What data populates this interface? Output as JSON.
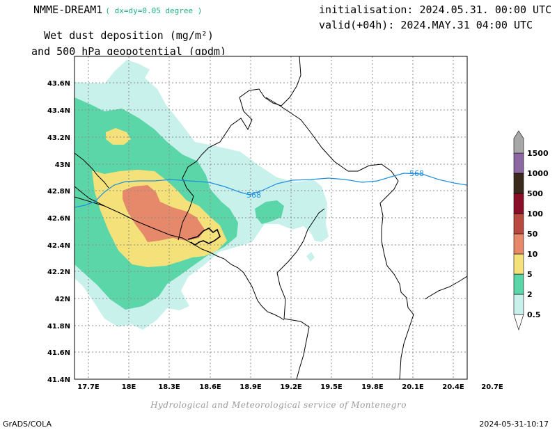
{
  "header": {
    "model": "NMME-DREAM1",
    "model_resolution": "( dx=dy=0.05 degree )",
    "title_line1": "Wet dust deposition (mg/m²)",
    "title_line2": "and 500 hPa geopotential (gpdm)",
    "initialisation": "initialisation: 2024.05.31. 00:00 UTC",
    "valid": "valid(+04h): 2024.MAY.31 04:00 UTC"
  },
  "map": {
    "lat_labels": [
      "43.6N",
      "43.4N",
      "43.2N",
      "43N",
      "42.8N",
      "42.6N",
      "42.4N",
      "42.2N",
      "42N",
      "41.8N",
      "41.6N",
      "41.4N"
    ],
    "lon_labels": [
      "17.7E",
      "18E",
      "18.3E",
      "18.6E",
      "18.9E",
      "19.2E",
      "19.5E",
      "19.8E",
      "20.1E",
      "20.4E",
      "20.7E"
    ],
    "contour_labels": [
      "568",
      "568"
    ],
    "contour_color": "#1e8fdc"
  },
  "legend": {
    "levels": [
      {
        "label": "0.5",
        "color": "#c8f1ec"
      },
      {
        "label": "2",
        "color": "#5ad6a8"
      },
      {
        "label": "5",
        "color": "#f5e17a"
      },
      {
        "label": "10",
        "color": "#e6896a"
      },
      {
        "label": "50",
        "color": "#b84a40"
      },
      {
        "label": "100",
        "color": "#8a0e28"
      },
      {
        "label": "500",
        "color": "#3a2a1c"
      },
      {
        "label": "1000",
        "color": "#8c67a2"
      },
      {
        "label": "1500",
        "color": "#a7a7a7"
      }
    ]
  },
  "footer": {
    "credit": "Hydrological and Meteorological service of Montenegro",
    "left": "GrADS/COLA",
    "right": "2024-05-31-10:17"
  }
}
